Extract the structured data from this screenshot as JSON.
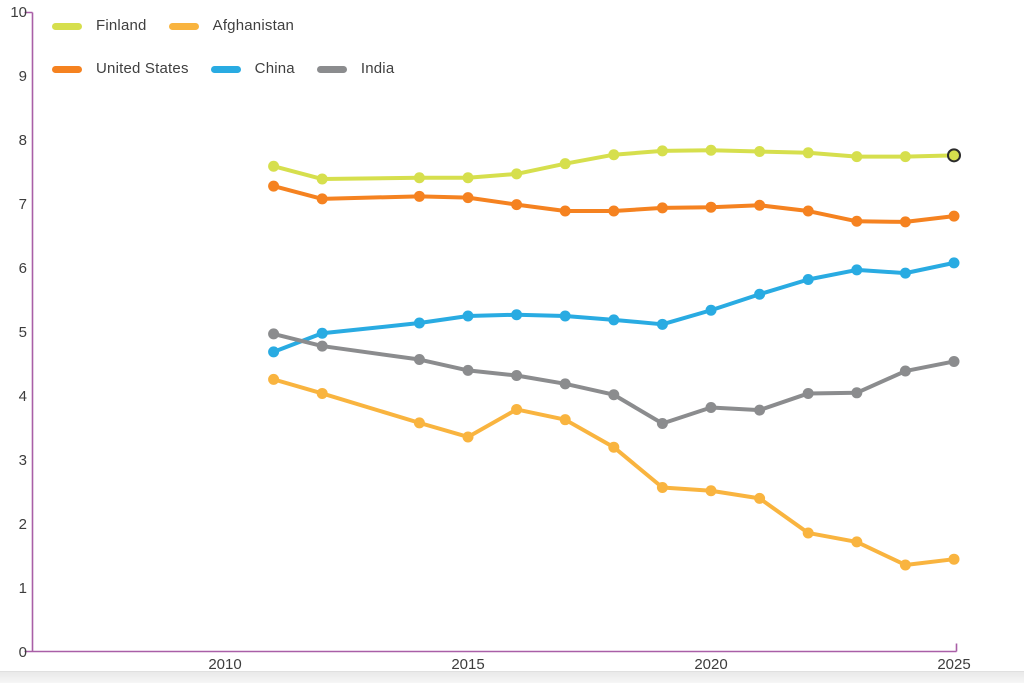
{
  "chart_data": {
    "type": "line",
    "title": "",
    "xlabel": "",
    "ylabel": "",
    "x": [
      2011,
      2012,
      2014,
      2015,
      2016,
      2017,
      2018,
      2019,
      2020,
      2021,
      2022,
      2023,
      2024,
      2025
    ],
    "series": [
      {
        "name": "Finland",
        "color": "#d6df4d",
        "values": [
          7.59,
          7.39,
          7.41,
          7.41,
          7.47,
          7.63,
          7.77,
          7.83,
          7.84,
          7.82,
          7.8,
          7.74,
          7.74,
          7.76
        ]
      },
      {
        "name": "Afghanistan",
        "color": "#f9b43f",
        "values": [
          4.26,
          4.04,
          3.58,
          3.36,
          3.79,
          3.63,
          3.2,
          2.57,
          2.52,
          2.4,
          1.86,
          1.72,
          1.36,
          1.45
        ]
      },
      {
        "name": "United States",
        "color": "#f58220",
        "values": [
          7.28,
          7.08,
          7.12,
          7.1,
          6.99,
          6.89,
          6.89,
          6.94,
          6.95,
          6.98,
          6.89,
          6.73,
          6.72,
          6.81
        ]
      },
      {
        "name": "China",
        "color": "#29abe2",
        "values": [
          4.69,
          4.98,
          5.14,
          5.25,
          5.27,
          5.25,
          5.19,
          5.12,
          5.34,
          5.59,
          5.82,
          5.97,
          5.92,
          6.08
        ]
      },
      {
        "name": "India",
        "color": "#8b8c8e",
        "values": [
          4.97,
          4.78,
          4.57,
          4.4,
          4.32,
          4.19,
          4.02,
          3.57,
          3.82,
          3.78,
          4.04,
          4.05,
          4.39,
          4.54
        ]
      }
    ],
    "ylim": [
      0,
      10
    ],
    "xlim": [
      2010,
      2025
    ],
    "yticks": [
      0,
      1,
      2,
      3,
      4,
      5,
      6,
      7,
      8,
      9,
      10
    ],
    "xticks": [
      2010,
      2015,
      2020,
      2025
    ],
    "grid": false,
    "missing_years": [
      2013
    ],
    "legend_position": "top-left",
    "legend_rows": [
      [
        0,
        1
      ],
      [
        2,
        3,
        4
      ]
    ],
    "highlight": {
      "series": "Finland",
      "year": 2025
    },
    "colors": {
      "axis": "#a95fa7",
      "tick_text": "#3d3d3d",
      "legend_text": "#3f3f3f",
      "highlight_ring": "#2b2b2b",
      "background": "#ffffff"
    }
  }
}
